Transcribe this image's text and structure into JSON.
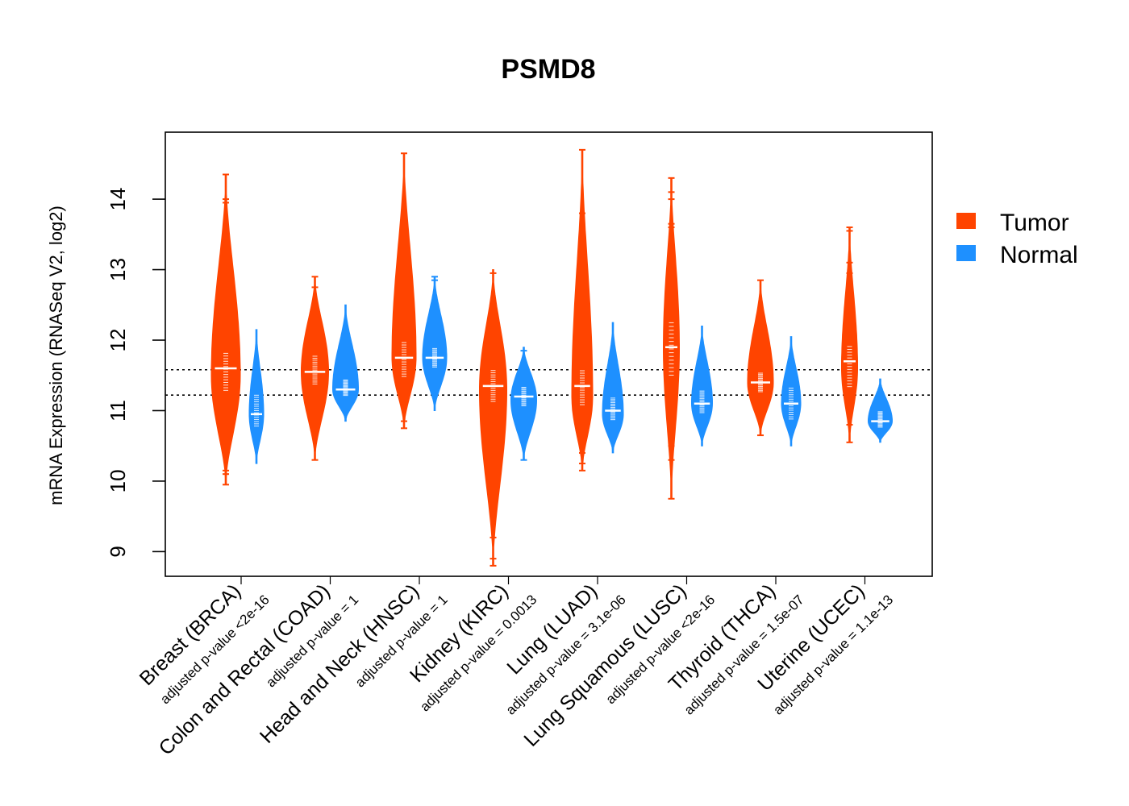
{
  "chart_data": {
    "type": "violin",
    "title": "PSMD8",
    "ylabel": "mRNA Expression (RNASeq V2, log2)",
    "xlabel": "",
    "ylim": [
      8.65,
      14.95
    ],
    "yticks": [
      9,
      10,
      11,
      12,
      13,
      14
    ],
    "reference_lines": [
      11.22,
      11.58
    ],
    "legend": {
      "position": "right",
      "entries": [
        {
          "name": "Tumor",
          "color": "#ff4400"
        },
        {
          "name": "Normal",
          "color": "#1e90ff"
        }
      ]
    },
    "groups": [
      {
        "cancer": "Breast (BRCA)",
        "pvalue": "adjusted p-value <2e-16",
        "tumor": {
          "median": 11.6,
          "q1": 11.25,
          "q3": 11.85,
          "min": 9.95,
          "max": 14.35,
          "peak": 11.5,
          "width": 18,
          "outliers": [
            9.95,
            10.1,
            10.15,
            10.35,
            10.55,
            10.6,
            12.6,
            12.9,
            13.05,
            13.1,
            13.5,
            13.55,
            13.95,
            14.0,
            14.35
          ]
        },
        "normal": {
          "median": 10.95,
          "q1": 10.75,
          "q3": 11.25,
          "min": 10.25,
          "max": 12.15,
          "peak": 10.95,
          "width": 9,
          "outliers": []
        }
      },
      {
        "cancer": "Colon and Rectal (COAD)",
        "pvalue": "adjusted p-value = 1",
        "tumor": {
          "median": 11.55,
          "q1": 11.35,
          "q3": 11.8,
          "min": 10.3,
          "max": 12.9,
          "peak": 11.55,
          "width": 17,
          "outliers": [
            10.3,
            10.75,
            10.8,
            12.75,
            12.9
          ]
        },
        "normal": {
          "median": 11.3,
          "q1": 11.2,
          "q3": 11.45,
          "min": 10.85,
          "max": 12.5,
          "peak": 11.3,
          "width": 16,
          "outliers": []
        }
      },
      {
        "cancer": "Head and Neck (HNSC)",
        "pvalue": "adjusted p-value = 1",
        "tumor": {
          "median": 11.75,
          "q1": 11.45,
          "q3": 12.0,
          "min": 10.75,
          "max": 14.65,
          "peak": 11.75,
          "width": 15,
          "outliers": [
            10.75,
            10.85,
            13.45,
            13.5,
            14.65
          ]
        },
        "normal": {
          "median": 11.75,
          "q1": 11.6,
          "q3": 11.9,
          "min": 11.0,
          "max": 12.9,
          "peak": 11.75,
          "width": 15,
          "outliers": [
            12.85,
            12.9
          ]
        }
      },
      {
        "cancer": "Kidney (KIRC)",
        "pvalue": "adjusted p-value = 0.0013",
        "tumor": {
          "median": 11.35,
          "q1": 11.1,
          "q3": 11.6,
          "min": 8.8,
          "max": 13.0,
          "peak": 11.3,
          "width": 17,
          "outliers": [
            8.8,
            8.9,
            9.2,
            10.4,
            10.55,
            12.5,
            12.95
          ]
        },
        "normal": {
          "median": 11.2,
          "q1": 11.05,
          "q3": 11.35,
          "min": 10.3,
          "max": 11.9,
          "peak": 11.15,
          "width": 16,
          "outliers": [
            10.3,
            11.85
          ]
        }
      },
      {
        "cancer": "Lung (LUAD)",
        "pvalue": "adjusted p-value = 3.1e-06",
        "tumor": {
          "median": 11.35,
          "q1": 11.05,
          "q3": 11.6,
          "min": 10.15,
          "max": 14.7,
          "peak": 11.2,
          "width": 13,
          "outliers": [
            10.15,
            10.25,
            10.4,
            10.55,
            12.8,
            13.05,
            13.45,
            13.8,
            14.7
          ]
        },
        "normal": {
          "median": 11.0,
          "q1": 10.85,
          "q3": 11.2,
          "min": 10.4,
          "max": 12.25,
          "peak": 10.95,
          "width": 13,
          "outliers": []
        }
      },
      {
        "cancer": "Lung Squamous (LUSC)",
        "pvalue": "adjusted p-value <2e-16",
        "tumor": {
          "median": 11.9,
          "q1": 11.45,
          "q3": 12.3,
          "min": 9.75,
          "max": 14.3,
          "peak": 11.9,
          "width": 10,
          "outliers": [
            9.75,
            10.3,
            10.5,
            10.8,
            13.6,
            13.65,
            14.0,
            14.1,
            14.3
          ]
        },
        "normal": {
          "median": 11.1,
          "q1": 10.95,
          "q3": 11.3,
          "min": 10.5,
          "max": 12.2,
          "peak": 11.1,
          "width": 13,
          "outliers": []
        }
      },
      {
        "cancer": "Thyroid (THCA)",
        "pvalue": "adjusted p-value = 1.5e-07",
        "tumor": {
          "median": 11.4,
          "q1": 11.25,
          "q3": 11.55,
          "min": 10.65,
          "max": 12.85,
          "peak": 11.4,
          "width": 16,
          "outliers": [
            10.65,
            12.3,
            12.85
          ]
        },
        "normal": {
          "median": 11.1,
          "q1": 10.85,
          "q3": 11.35,
          "min": 10.5,
          "max": 12.05,
          "peak": 11.1,
          "width": 12,
          "outliers": []
        }
      },
      {
        "cancer": "Uterine (UCEC)",
        "pvalue": "adjusted p-value = 1.1e-13",
        "tumor": {
          "median": 11.7,
          "q1": 11.3,
          "q3": 11.95,
          "min": 10.55,
          "max": 13.6,
          "peak": 11.6,
          "width": 10,
          "outliers": [
            10.55,
            10.8,
            12.95,
            13.1,
            13.55,
            13.6
          ]
        },
        "normal": {
          "median": 10.85,
          "q1": 10.75,
          "q3": 11.0,
          "min": 10.55,
          "max": 11.45,
          "peak": 10.85,
          "width": 15,
          "outliers": []
        }
      }
    ]
  }
}
